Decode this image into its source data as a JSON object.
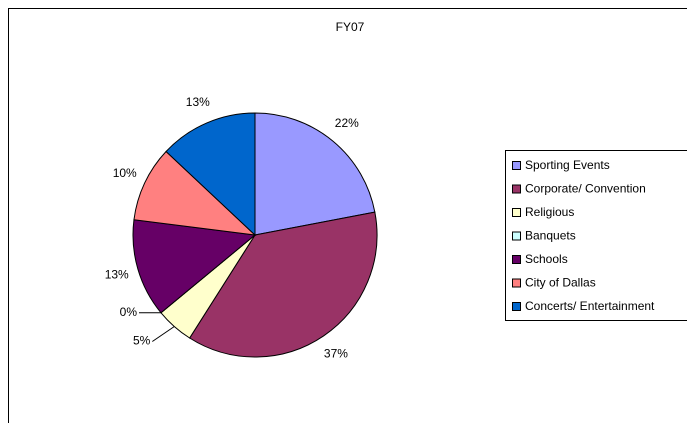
{
  "chart_data": {
    "type": "pie",
    "title": "FY07",
    "categories": [
      "Sporting Events",
      "Corporate/ Convention",
      "Religious",
      "Banquets",
      "Schools",
      "City of Dallas",
      "Concerts/ Entertainment"
    ],
    "values": [
      22,
      37,
      5,
      0,
      13,
      10,
      13
    ],
    "value_labels": [
      "22%",
      "37%",
      "5%",
      "0%",
      "13%",
      "10%",
      "13%"
    ],
    "colors": [
      "#9999FF",
      "#993366",
      "#FFFFCC",
      "#CCFFFF",
      "#660066",
      "#FF8080",
      "#0066CC"
    ],
    "legend": "right"
  }
}
